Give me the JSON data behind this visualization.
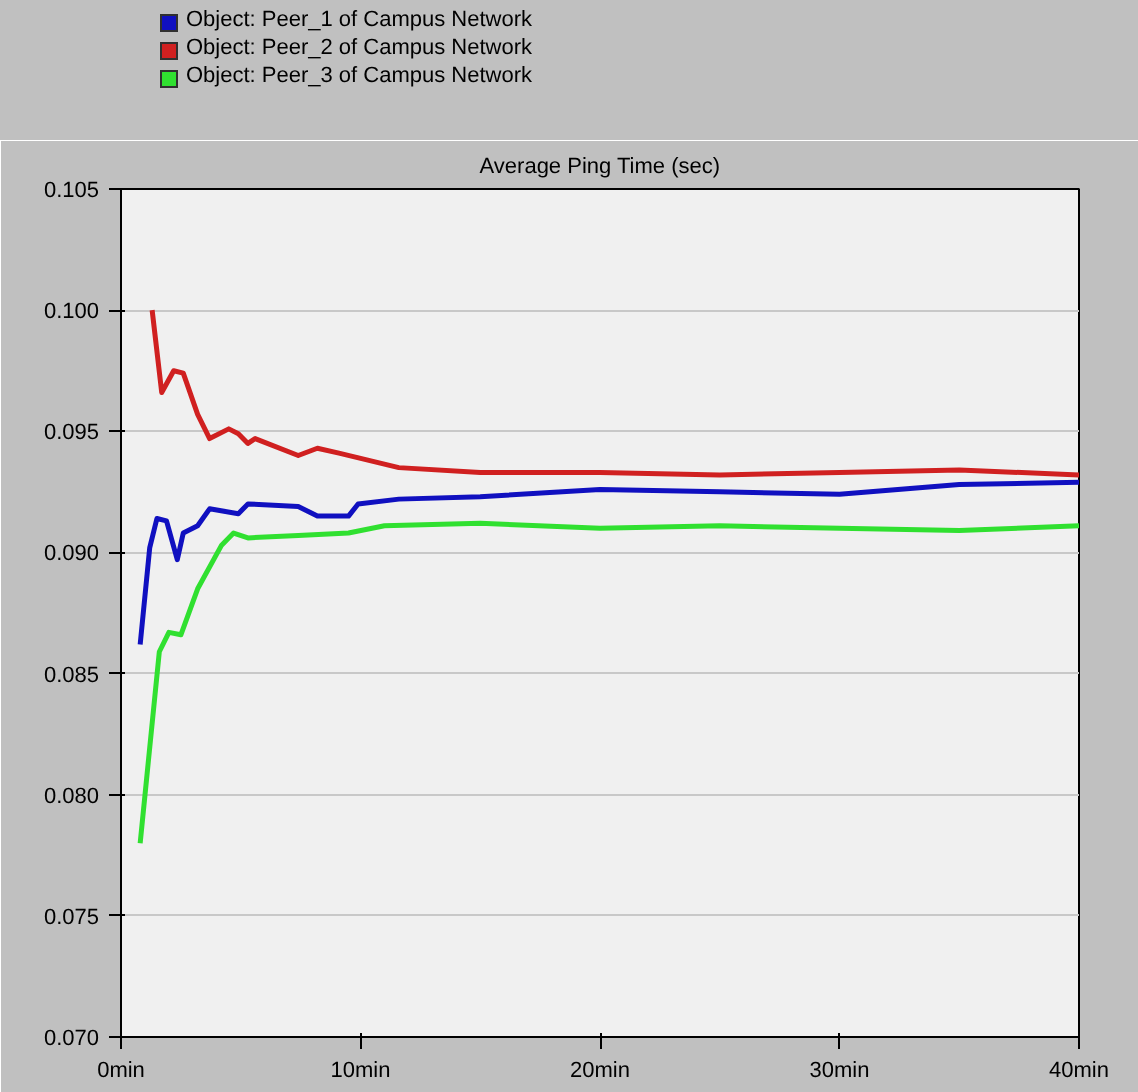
{
  "chart_data": {
    "type": "line",
    "title": "Average Ping Time (sec)",
    "xlim": [
      0,
      40
    ],
    "xticks": [
      {
        "value": 0,
        "label": "0min"
      },
      {
        "value": 10,
        "label": "10min"
      },
      {
        "value": 20,
        "label": "20min"
      },
      {
        "value": 30,
        "label": "30min"
      },
      {
        "value": 40,
        "label": "40min"
      }
    ],
    "ylim": [
      0.07,
      0.105
    ],
    "yticks": [
      {
        "value": 0.07,
        "label": "0.070"
      },
      {
        "value": 0.075,
        "label": "0.075"
      },
      {
        "value": 0.08,
        "label": "0.080"
      },
      {
        "value": 0.085,
        "label": "0.085"
      },
      {
        "value": 0.09,
        "label": "0.090"
      },
      {
        "value": 0.095,
        "label": "0.095"
      },
      {
        "value": 0.1,
        "label": "0.100"
      },
      {
        "value": 0.105,
        "label": "0.105"
      }
    ],
    "grid": "y",
    "legend": "top",
    "marker": "none",
    "line_style": "solid",
    "series": [
      {
        "name": "Object: Peer_1 of Campus Network",
        "color": "#1010c0",
        "x": [
          0.8,
          1.2,
          1.5,
          1.9,
          2.35,
          2.6,
          3.2,
          3.7,
          4.9,
          5.3,
          7.4,
          8.2,
          9.5,
          9.9,
          11.6,
          15,
          20,
          25,
          30,
          35,
          40
        ],
        "values": [
          0.0862,
          0.0902,
          0.0914,
          0.0913,
          0.0897,
          0.0908,
          0.0911,
          0.0918,
          0.0916,
          0.092,
          0.0919,
          0.0915,
          0.0915,
          0.092,
          0.0922,
          0.0923,
          0.0926,
          0.0925,
          0.0924,
          0.0928,
          0.0929
        ]
      },
      {
        "name": "Object: Peer_2 of Campus Network",
        "color": "#d02020",
        "x": [
          1.3,
          1.7,
          2.2,
          2.6,
          3.2,
          3.7,
          4.5,
          4.9,
          5.3,
          5.6,
          7.4,
          8.2,
          9.1,
          11.6,
          15,
          20,
          25,
          30,
          35,
          40
        ],
        "values": [
          0.1,
          0.0966,
          0.0975,
          0.0974,
          0.0957,
          0.0947,
          0.0951,
          0.0949,
          0.0945,
          0.0947,
          0.094,
          0.0943,
          0.0941,
          0.0935,
          0.0933,
          0.0933,
          0.0932,
          0.0933,
          0.0934,
          0.0932
        ]
      },
      {
        "name": "Object: Peer_3 of Campus Network",
        "color": "#30e030",
        "x": [
          0.8,
          1.6,
          2.0,
          2.5,
          3.2,
          4.2,
          4.7,
          5.3,
          7.4,
          9.5,
          11,
          15,
          20,
          25,
          30,
          35,
          40
        ],
        "values": [
          0.078,
          0.0859,
          0.0867,
          0.0866,
          0.0885,
          0.0903,
          0.0908,
          0.0906,
          0.0907,
          0.0908,
          0.0911,
          0.0912,
          0.091,
          0.0911,
          0.091,
          0.0909,
          0.0911
        ]
      }
    ]
  }
}
